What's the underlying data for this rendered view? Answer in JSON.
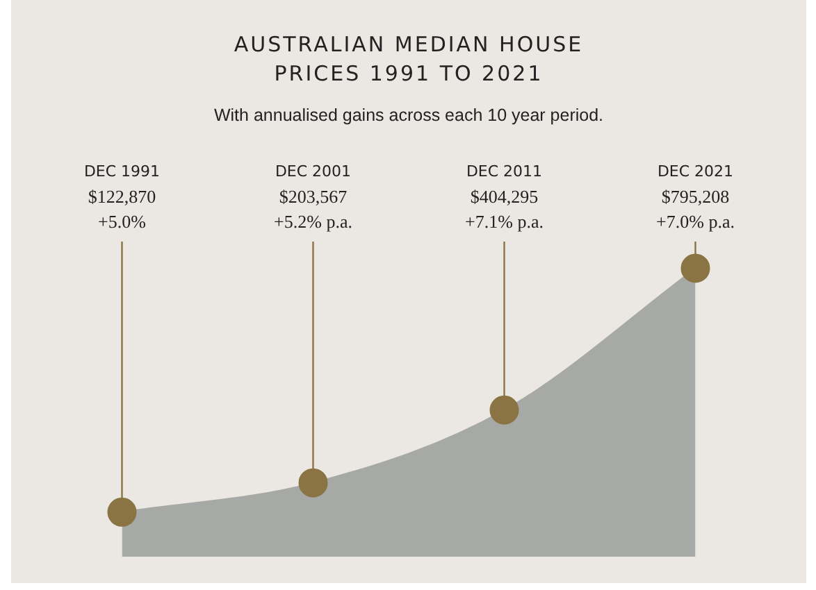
{
  "chart_data": {
    "type": "area",
    "title": "AUSTRALIAN MEDIAN HOUSE PRICES 1991 TO 2021",
    "subtitle": "With annualised gains across each 10 year period.",
    "categories": [
      "DEC 1991",
      "DEC 2001",
      "DEC 2011",
      "DEC 2021"
    ],
    "values": [
      122870,
      203567,
      404295,
      795208
    ],
    "value_labels": [
      "$122,870",
      "$203,567",
      "$404,295",
      "$795,208"
    ],
    "color": "#a7a9a6",
    "marker": "circle",
    "tick_labels": "x",
    "annotations": [
      "+5.0%",
      "+5.2% p.a.",
      "+7.1% p.a.",
      "+7.0% p.a."
    ]
  }
}
